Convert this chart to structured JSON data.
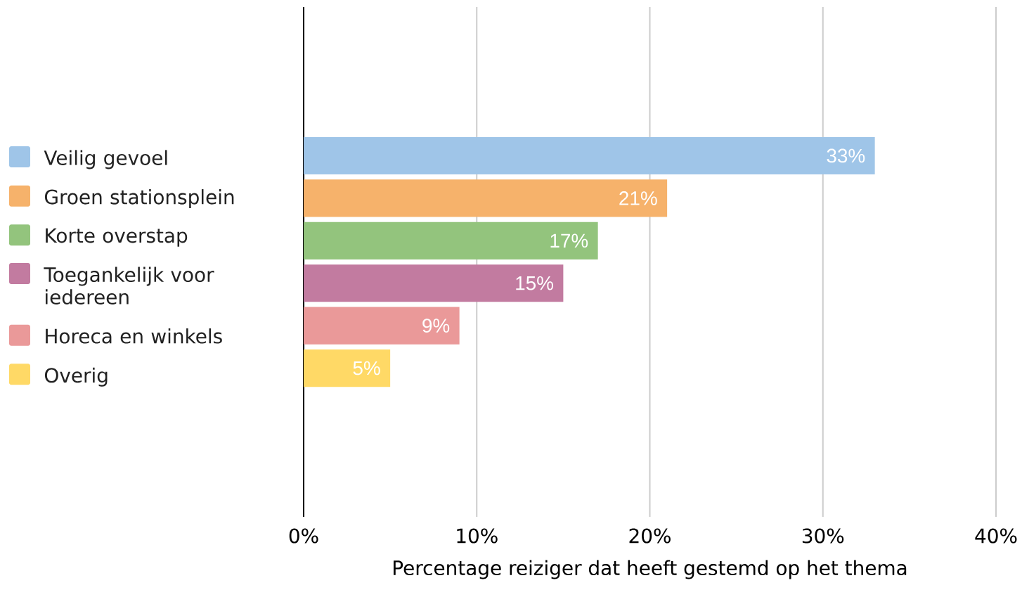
{
  "chart_data": {
    "type": "bar",
    "orientation": "horizontal",
    "categories": [
      null,
      null,
      null,
      null,
      null,
      null,
      null,
      null,
      null,
      null,
      null,
      null
    ],
    "series": [
      {
        "name": "Veilig gevoel",
        "color": "#9fc5e8",
        "values": [
          null,
          null,
          null,
          33,
          null,
          null,
          null,
          null,
          null,
          null,
          null,
          null
        ],
        "value_labels": [
          null,
          null,
          null,
          "33%",
          null,
          null,
          null,
          null,
          null,
          null,
          null,
          null
        ]
      },
      {
        "name": "Groen stationsplein",
        "color": "#f6b26b",
        "values": [
          null,
          null,
          null,
          null,
          21,
          null,
          null,
          null,
          null,
          null,
          null,
          null
        ],
        "value_labels": [
          null,
          null,
          null,
          null,
          "21%",
          null,
          null,
          null,
          null,
          null,
          null,
          null
        ]
      },
      {
        "name": "Korte overstap",
        "color": "#93c47d",
        "values": [
          null,
          null,
          null,
          null,
          null,
          17,
          null,
          null,
          null,
          null,
          null,
          null
        ],
        "value_labels": [
          null,
          null,
          null,
          null,
          null,
          "17%",
          null,
          null,
          null,
          null,
          null,
          null
        ]
      },
      {
        "name": "Toegankelijk voor iedereen",
        "color": "#c27ba0",
        "values": [
          null,
          null,
          null,
          null,
          null,
          null,
          15,
          null,
          null,
          null,
          null,
          null
        ],
        "value_labels": [
          null,
          null,
          null,
          null,
          null,
          null,
          "15%",
          null,
          null,
          null,
          null,
          null
        ]
      },
      {
        "name": "Horeca en winkels",
        "color": "#ea9999",
        "values": [
          null,
          null,
          null,
          null,
          null,
          null,
          null,
          9,
          null,
          null,
          null,
          null
        ],
        "value_labels": [
          null,
          null,
          null,
          null,
          null,
          null,
          null,
          "9%",
          null,
          null,
          null,
          null
        ]
      },
      {
        "name": "Overig",
        "color": "#ffd966",
        "values": [
          null,
          null,
          null,
          null,
          null,
          null,
          null,
          null,
          5,
          null,
          null,
          null
        ],
        "value_labels": [
          null,
          null,
          null,
          null,
          null,
          null,
          null,
          null,
          "5%",
          null,
          null,
          null
        ]
      }
    ],
    "xlabel": "Percentage reiziger dat heeft gestemd op het thema",
    "xlim": [
      0,
      40
    ],
    "xticks": [
      {
        "value": 0,
        "label": "0%"
      },
      {
        "value": 10,
        "label": "10%"
      },
      {
        "value": 20,
        "label": "20%"
      },
      {
        "value": 30,
        "label": "30%"
      },
      {
        "value": 40,
        "label": "40%"
      }
    ],
    "grid": "x",
    "legend": "left"
  }
}
